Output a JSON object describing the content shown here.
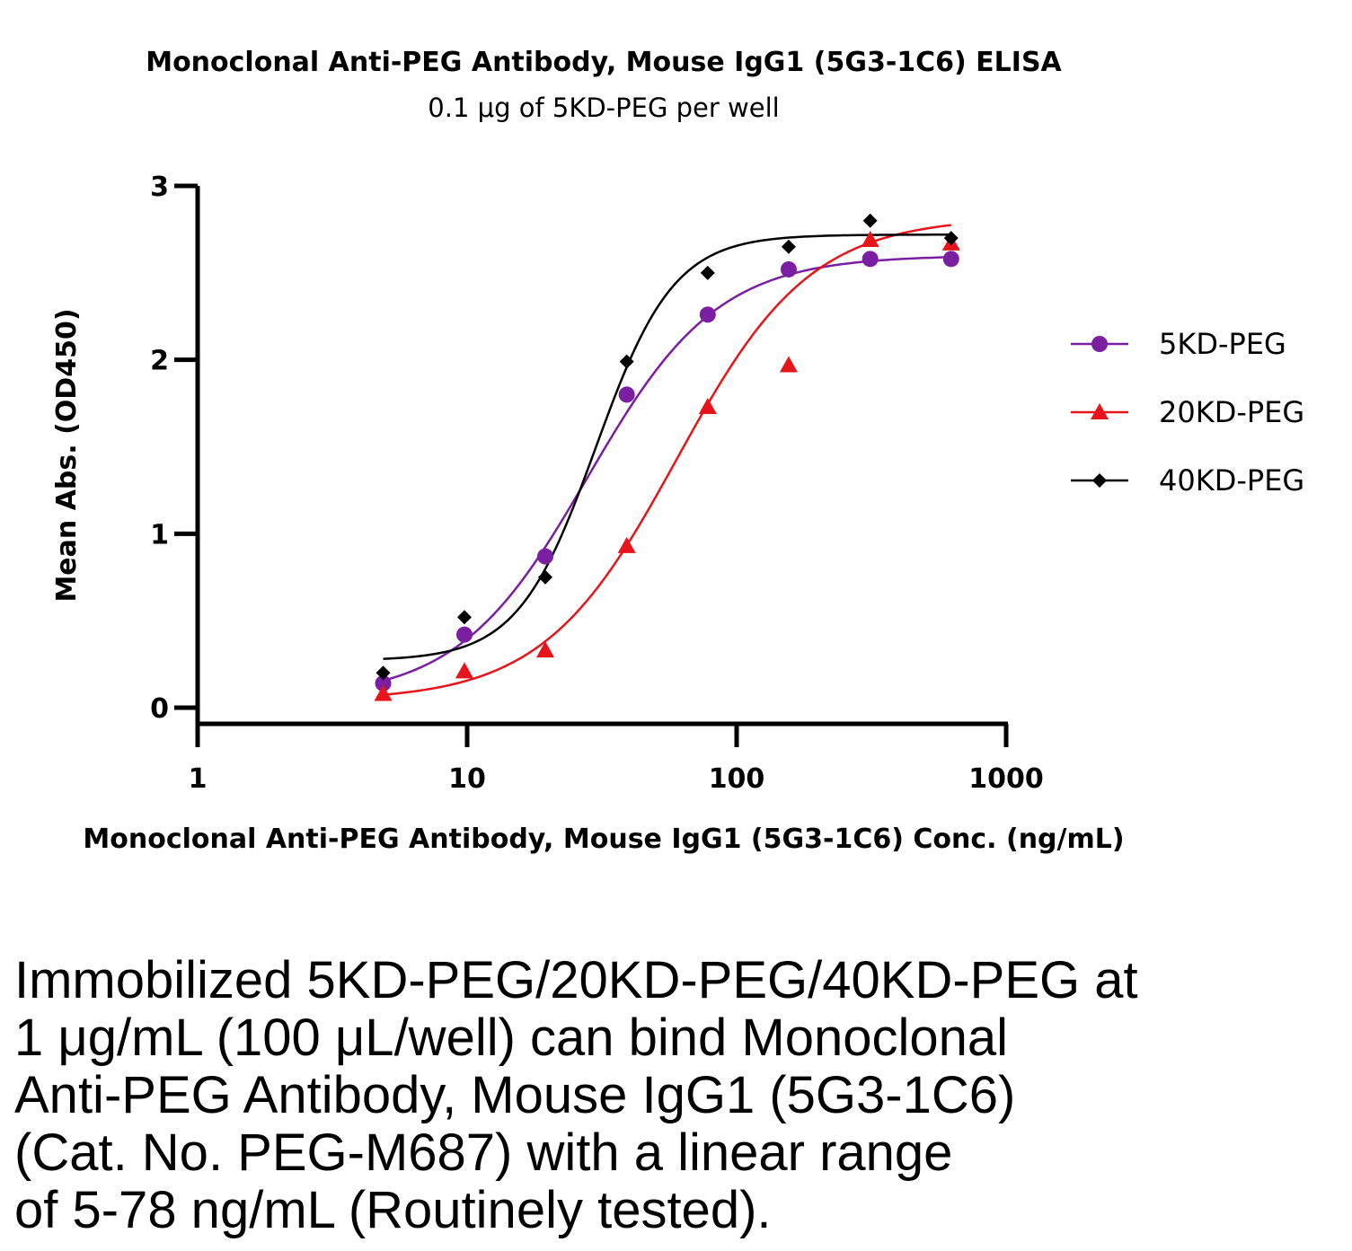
{
  "chart_data": {
    "type": "scatter",
    "title": "Monoclonal Anti-PEG Antibody, Mouse IgG1 (5G3-1C6) ELISA",
    "subtitle": "0.1 μg of 5KD-PEG per well",
    "xlabel": "Monoclonal Anti-PEG Antibody, Mouse IgG1 (5G3-1C6) Conc. (ng/mL)",
    "ylabel": "Mean Abs. (OD450)",
    "xscale": "log",
    "xlim": [
      1,
      1000
    ],
    "ylim": [
      0,
      3
    ],
    "xticks": [
      "1",
      "10",
      "100",
      "1000"
    ],
    "yticks": [
      "0",
      "1",
      "2",
      "3"
    ],
    "grid": false,
    "legend": "right",
    "x": [
      4.88,
      9.77,
      19.5,
      39.1,
      78.1,
      156,
      313,
      625
    ],
    "series": [
      {
        "name": "5KD-PEG",
        "marker": "circle",
        "color": "#7a1fa2",
        "values": [
          0.14,
          0.42,
          0.87,
          1.8,
          2.26,
          2.52,
          2.58,
          2.58
        ],
        "fit": {
          "bottom": 0.05,
          "top": 2.6,
          "ec50": 28,
          "hill": 1.8
        }
      },
      {
        "name": "20KD-PEG",
        "marker": "triangle",
        "color": "#e8141b",
        "values": [
          0.08,
          0.21,
          0.33,
          0.93,
          1.73,
          1.97,
          2.69,
          2.67
        ],
        "fit": {
          "bottom": 0.04,
          "top": 2.82,
          "ec50": 60,
          "hill": 1.75
        }
      },
      {
        "name": "40KD-PEG",
        "marker": "diamond",
        "color": "#000000",
        "values": [
          0.2,
          0.52,
          0.75,
          1.99,
          2.5,
          2.65,
          2.8,
          2.7
        ],
        "fit": {
          "bottom": 0.27,
          "top": 2.72,
          "ec50": 30,
          "hill": 3.0
        }
      }
    ]
  },
  "caption": "Immobilized 5KD-PEG/20KD-PEG/40KD-PEG at\n1 μg/mL (100 μL/well) can bind Monoclonal\nAnti-PEG Antibody, Mouse IgG1 (5G3-1C6)\n(Cat. No. PEG-M687) with a linear range\nof 5-78 ng/mL (Routinely tested)."
}
